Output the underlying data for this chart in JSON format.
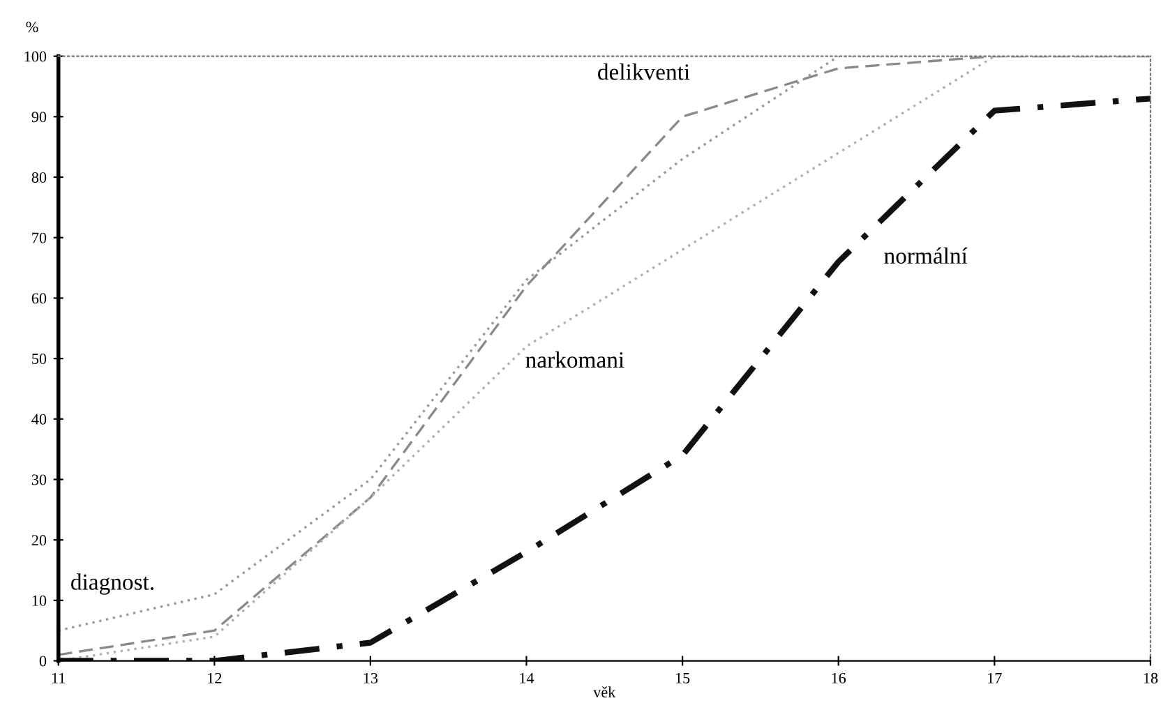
{
  "chart_data": {
    "type": "line",
    "ylabel": "%",
    "xlabel": "věk",
    "x": [
      11,
      12,
      13,
      14,
      15,
      16,
      17,
      18
    ],
    "xlim": [
      11,
      18
    ],
    "xticks": [
      11,
      12,
      13,
      14,
      15,
      16,
      17,
      18
    ],
    "ylim": [
      0,
      100
    ],
    "yticks": [
      0,
      10,
      20,
      30,
      40,
      50,
      60,
      70,
      80,
      90,
      100
    ],
    "grid": false,
    "legend": false,
    "marker": "none",
    "series": [
      {
        "name": "diagnost.",
        "color": "#9a9a9a",
        "line_style": "dotted",
        "values": [
          5,
          11,
          30,
          63,
          83,
          100,
          100,
          100
        ]
      },
      {
        "name": "delikventi",
        "color": "#8a8a8a",
        "line_style": "dashed",
        "values": [
          1,
          5,
          27,
          62,
          90,
          98,
          100,
          100
        ]
      },
      {
        "name": "narkomani",
        "color": "#b0b0b0",
        "line_style": "dotted",
        "values": [
          0,
          4,
          27,
          52,
          68,
          84,
          100,
          100
        ]
      },
      {
        "name": "normální",
        "color": "#111111",
        "line_style": "dashdot",
        "values": [
          0,
          0,
          3,
          18,
          34,
          66,
          91,
          93
        ]
      }
    ]
  }
}
